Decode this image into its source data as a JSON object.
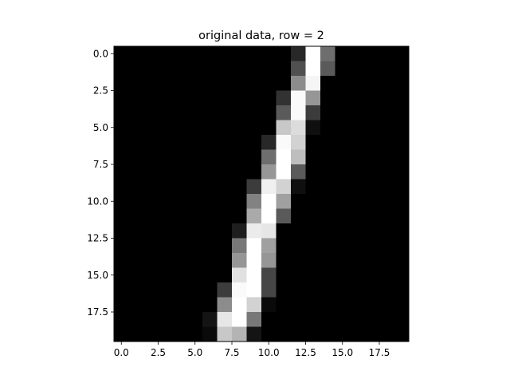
{
  "chart_data": {
    "type": "heatmap",
    "title": "original data, row = 2",
    "xlabel": "",
    "ylabel": "",
    "colormap": "gray",
    "value_range": [
      0,
      255
    ],
    "rows": 20,
    "cols": 20,
    "xlim": [
      -0.5,
      19.5
    ],
    "ylim": [
      19.5,
      -0.5
    ],
    "x_ticks": [
      0.0,
      2.5,
      5.0,
      7.5,
      10.0,
      12.5,
      15.0,
      17.5
    ],
    "x_tick_labels": [
      "0.0",
      "2.5",
      "5.0",
      "7.5",
      "10.0",
      "12.5",
      "15.0",
      "17.5"
    ],
    "y_ticks": [
      0.0,
      2.5,
      5.0,
      7.5,
      10.0,
      12.5,
      15.0,
      17.5
    ],
    "y_tick_labels": [
      "0.0",
      "2.5",
      "5.0",
      "7.5",
      "10.0",
      "12.5",
      "15.0",
      "17.5"
    ],
    "values": [
      [
        0,
        0,
        0,
        0,
        0,
        0,
        0,
        0,
        0,
        0,
        0,
        0,
        40,
        255,
        110,
        0,
        0,
        0,
        0,
        0
      ],
      [
        0,
        0,
        0,
        0,
        0,
        0,
        0,
        0,
        0,
        0,
        0,
        0,
        80,
        255,
        90,
        0,
        0,
        0,
        0,
        0
      ],
      [
        0,
        0,
        0,
        0,
        0,
        0,
        0,
        0,
        0,
        0,
        0,
        0,
        140,
        245,
        0,
        0,
        0,
        0,
        0,
        0
      ],
      [
        0,
        0,
        0,
        0,
        0,
        0,
        0,
        0,
        0,
        0,
        0,
        50,
        250,
        150,
        0,
        0,
        0,
        0,
        0,
        0
      ],
      [
        0,
        0,
        0,
        0,
        0,
        0,
        0,
        0,
        0,
        0,
        0,
        90,
        250,
        60,
        0,
        0,
        0,
        0,
        0,
        0
      ],
      [
        0,
        0,
        0,
        0,
        0,
        0,
        0,
        0,
        0,
        0,
        0,
        200,
        220,
        15,
        0,
        0,
        0,
        0,
        0,
        0
      ],
      [
        0,
        0,
        0,
        0,
        0,
        0,
        0,
        0,
        0,
        0,
        40,
        250,
        210,
        0,
        0,
        0,
        0,
        0,
        0,
        0
      ],
      [
        0,
        0,
        0,
        0,
        0,
        0,
        0,
        0,
        0,
        0,
        110,
        255,
        190,
        0,
        0,
        0,
        0,
        0,
        0,
        0
      ],
      [
        0,
        0,
        0,
        0,
        0,
        0,
        0,
        0,
        0,
        0,
        150,
        255,
        90,
        0,
        0,
        0,
        0,
        0,
        0,
        0
      ],
      [
        0,
        0,
        0,
        0,
        0,
        0,
        0,
        0,
        0,
        60,
        240,
        210,
        15,
        0,
        0,
        0,
        0,
        0,
        0,
        0
      ],
      [
        0,
        0,
        0,
        0,
        0,
        0,
        0,
        0,
        0,
        130,
        255,
        160,
        0,
        0,
        0,
        0,
        0,
        0,
        0,
        0
      ],
      [
        0,
        0,
        0,
        0,
        0,
        0,
        0,
        0,
        0,
        170,
        255,
        90,
        0,
        0,
        0,
        0,
        0,
        0,
        0,
        0
      ],
      [
        0,
        0,
        0,
        0,
        0,
        0,
        0,
        0,
        30,
        235,
        230,
        0,
        0,
        0,
        0,
        0,
        0,
        0,
        0,
        0
      ],
      [
        0,
        0,
        0,
        0,
        0,
        0,
        0,
        0,
        120,
        255,
        160,
        0,
        0,
        0,
        0,
        0,
        0,
        0,
        0,
        0
      ],
      [
        0,
        0,
        0,
        0,
        0,
        0,
        0,
        0,
        150,
        255,
        150,
        0,
        0,
        0,
        0,
        0,
        0,
        0,
        0,
        0
      ],
      [
        0,
        0,
        0,
        0,
        0,
        0,
        0,
        0,
        225,
        255,
        70,
        0,
        0,
        0,
        0,
        0,
        0,
        0,
        0,
        0
      ],
      [
        0,
        0,
        0,
        0,
        0,
        0,
        0,
        60,
        250,
        255,
        70,
        0,
        0,
        0,
        0,
        0,
        0,
        0,
        0,
        0
      ],
      [
        0,
        0,
        0,
        0,
        0,
        0,
        0,
        140,
        255,
        210,
        10,
        0,
        0,
        0,
        0,
        0,
        0,
        0,
        0,
        0
      ],
      [
        0,
        0,
        0,
        0,
        0,
        0,
        20,
        230,
        255,
        120,
        0,
        0,
        0,
        0,
        0,
        0,
        0,
        0,
        0,
        0
      ],
      [
        0,
        0,
        0,
        0,
        0,
        0,
        10,
        200,
        180,
        20,
        0,
        0,
        0,
        0,
        0,
        0,
        0,
        0,
        0,
        0
      ]
    ]
  }
}
